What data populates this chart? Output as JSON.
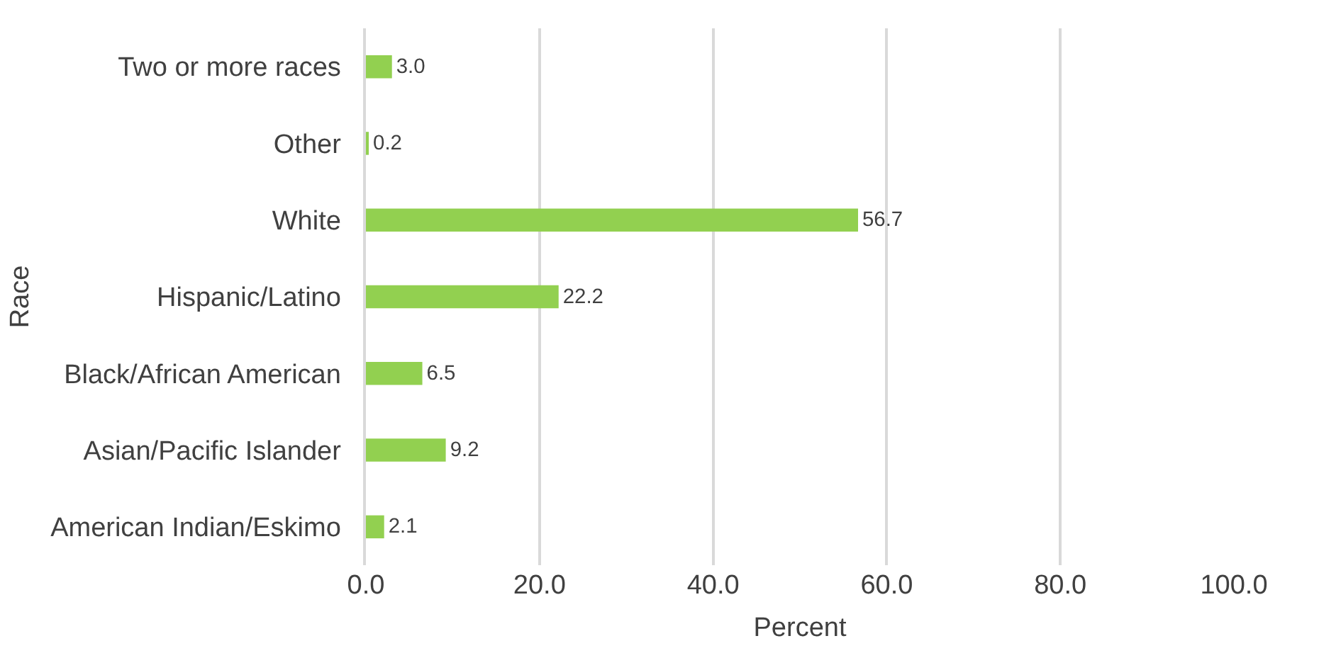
{
  "chart_data": {
    "type": "bar",
    "orientation": "horizontal",
    "xlabel": "Percent",
    "ylabel": "Race",
    "categories": [
      "Two or more races",
      "Other",
      "White",
      "Hispanic/Latino",
      "Black/African American",
      "Asian/Pacific Islander",
      "American Indian/Eskimo"
    ],
    "values": [
      3.0,
      0.2,
      56.7,
      22.2,
      6.5,
      9.2,
      2.1
    ],
    "value_labels": [
      "3.0",
      "0.2",
      "56.7",
      "22.2",
      "6.5",
      "9.2",
      "2.1"
    ],
    "color": "#92d050",
    "xlim": [
      0,
      100
    ],
    "xticks": [
      {
        "value": 0,
        "label": "0.0"
      },
      {
        "value": 20,
        "label": "20.0"
      },
      {
        "value": 40,
        "label": "40.0"
      },
      {
        "value": 60,
        "label": "60.0"
      },
      {
        "value": 80,
        "label": "80.0"
      },
      {
        "value": 100,
        "label": "100.0"
      }
    ],
    "grid": "x"
  }
}
